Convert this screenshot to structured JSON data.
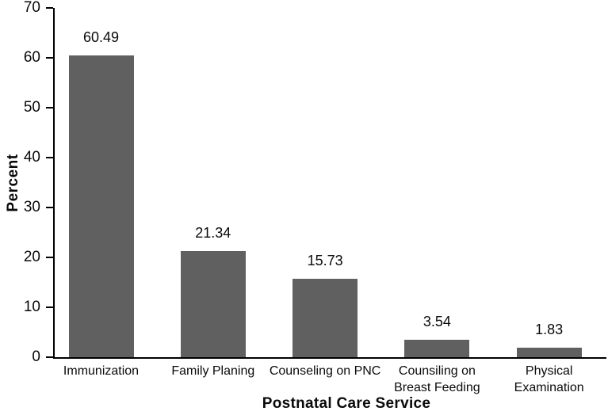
{
  "figure": {
    "background": "#ffffff",
    "axis_color": "#000000",
    "text_color": "#0a0a0a"
  },
  "chart_data": {
    "type": "bar",
    "title": "",
    "xlabel": "Postnatal Care Service",
    "ylabel": "Percent",
    "categories": [
      "Immunization",
      "Family Planing",
      "Counseling on PNC",
      "Counsiling on\nBreast Feeding",
      "Physical\nExamination"
    ],
    "values": [
      60.49,
      21.34,
      15.73,
      3.54,
      1.83
    ],
    "bar_value_labels": [
      "60.49",
      "21.34",
      "15.73",
      "3.54",
      "1.83"
    ],
    "ylim": [
      0,
      70
    ],
    "yticks": [
      0,
      10,
      20,
      30,
      40,
      50,
      60,
      70
    ],
    "grid": false,
    "legend": null,
    "bar_color": "#606060"
  }
}
